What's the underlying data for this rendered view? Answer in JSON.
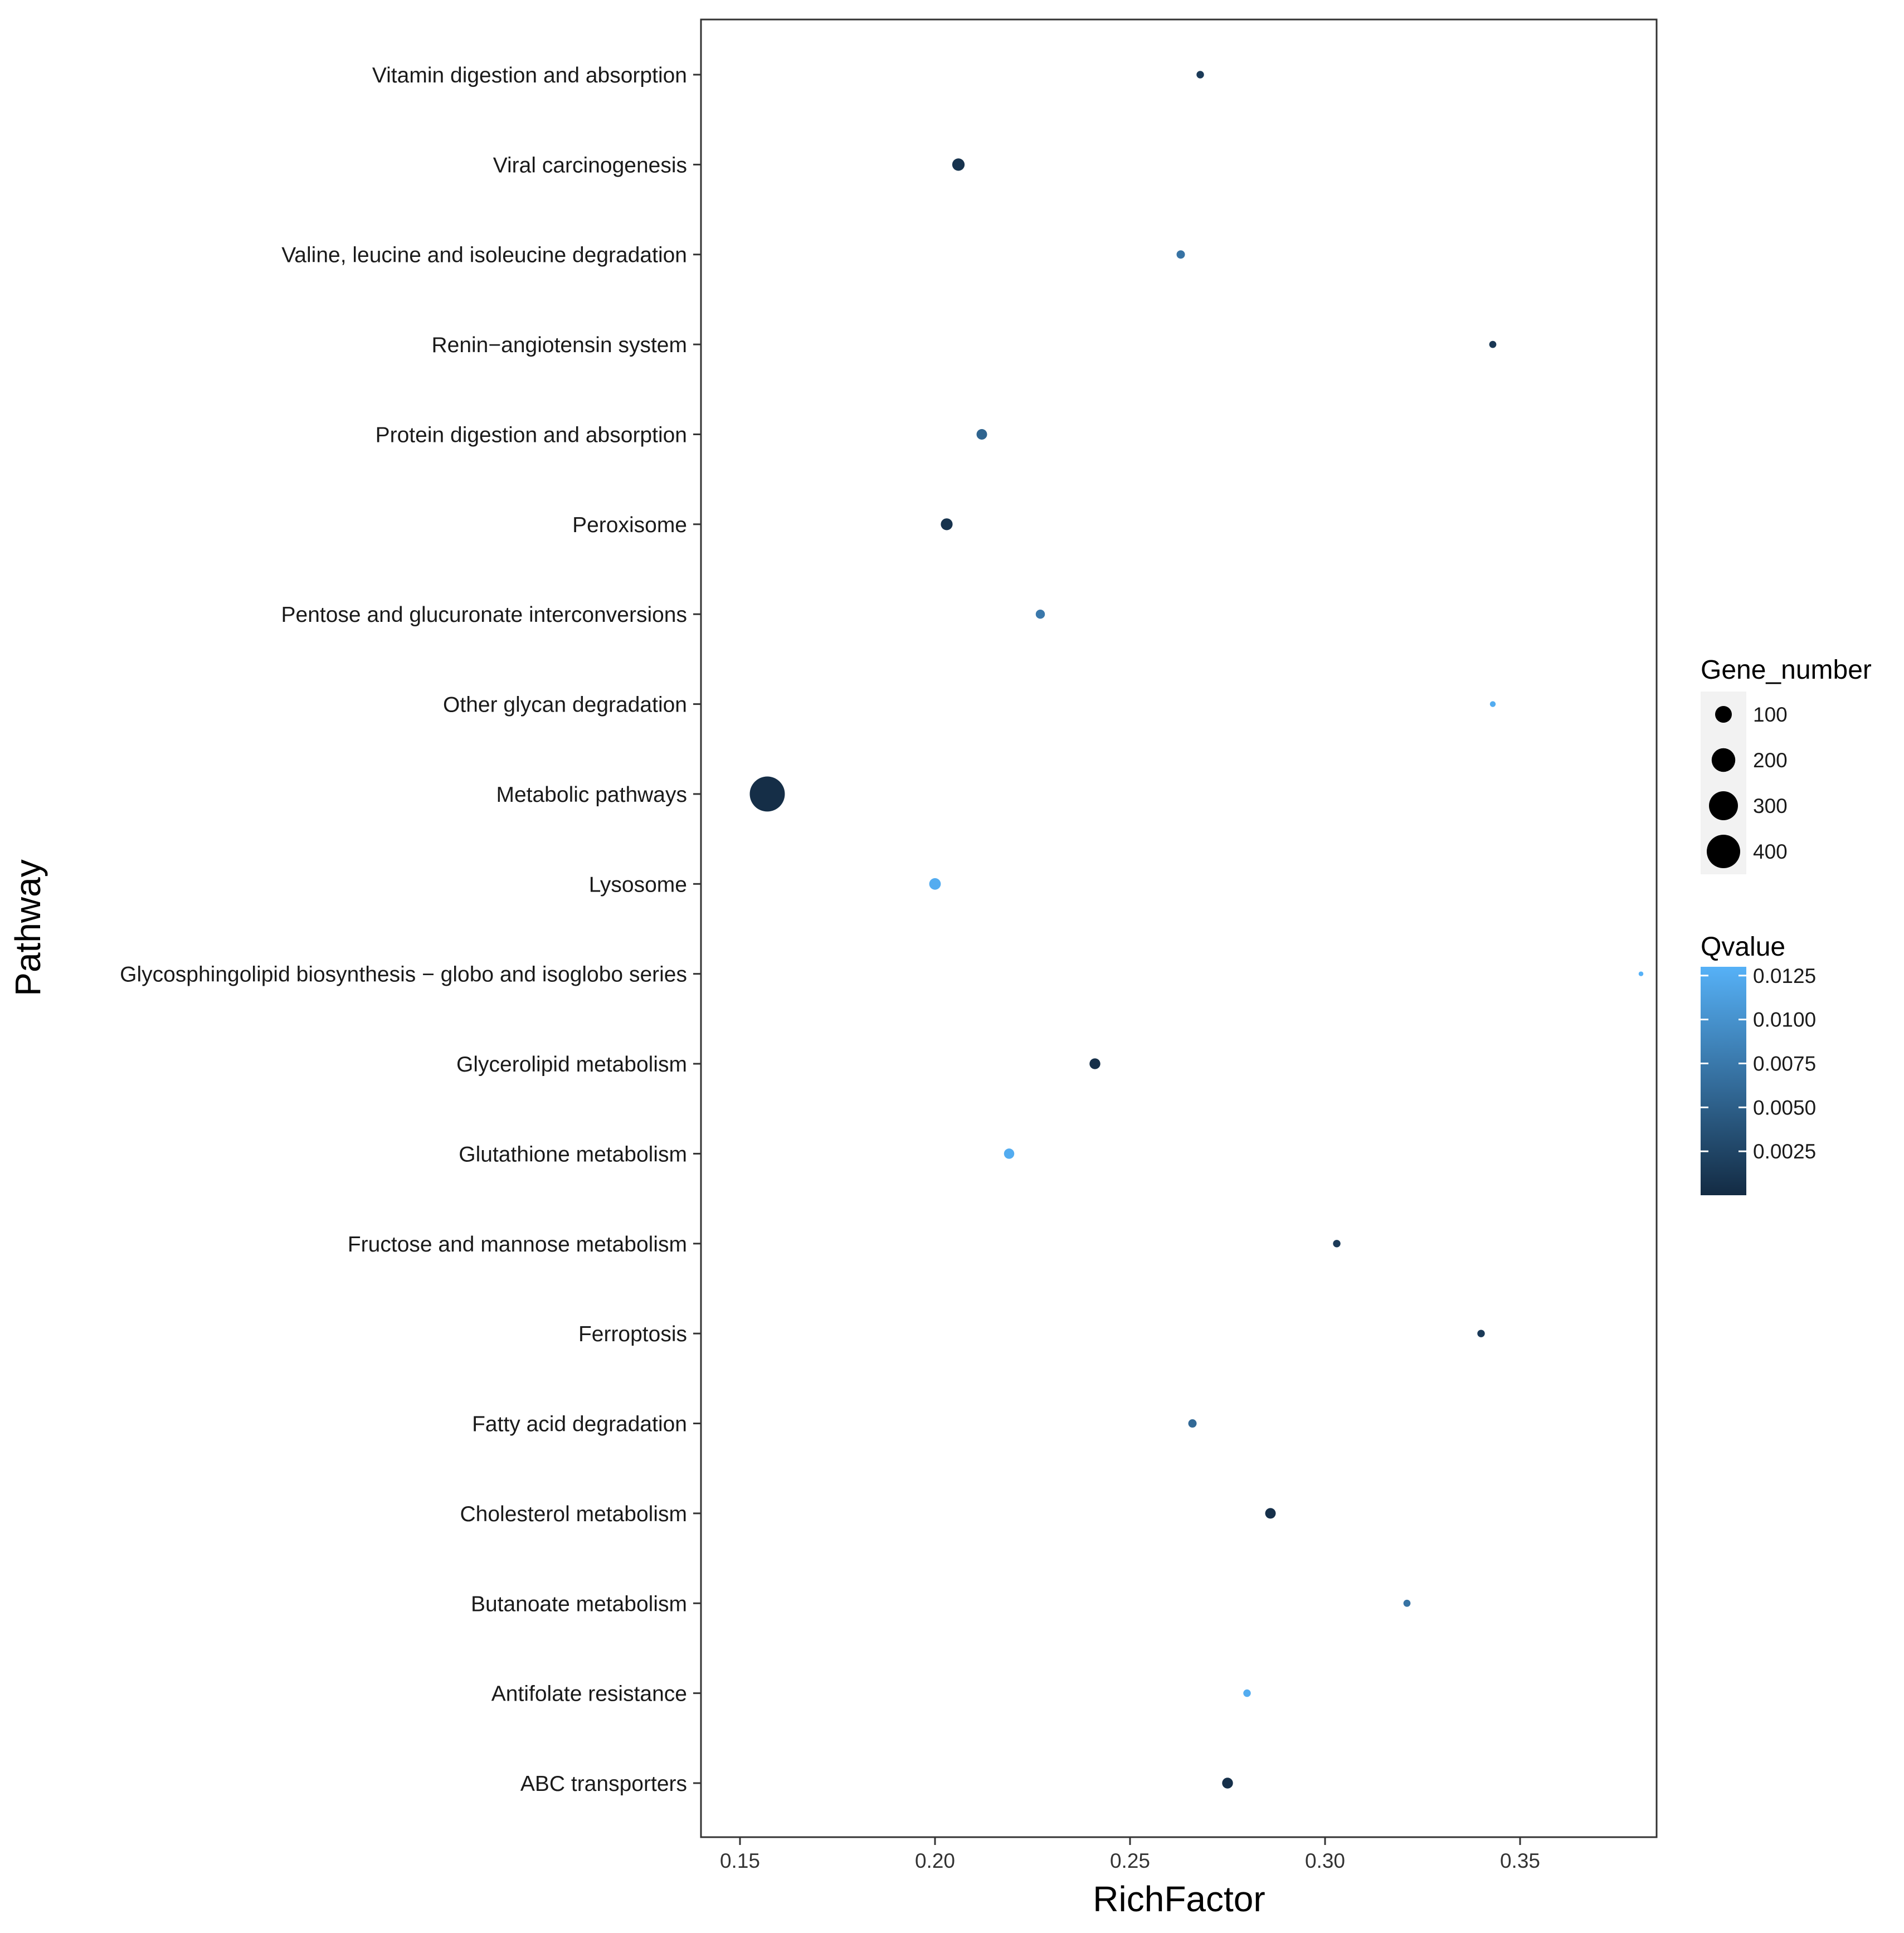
{
  "chart_data": {
    "type": "scatter",
    "title": "",
    "xlabel": "RichFactor",
    "ylabel": "Pathway",
    "xlim": [
      0.14,
      0.385
    ],
    "x_ticks": [
      "0.15",
      "0.20",
      "0.25",
      "0.30",
      "0.35"
    ],
    "grid": false,
    "points": [
      {
        "pathway": "Vitamin digestion and absorption",
        "richfactor": 0.268,
        "gene_number": 20,
        "qvalue": 0.0015
      },
      {
        "pathway": "Viral carcinogenesis",
        "richfactor": 0.206,
        "gene_number": 55,
        "qvalue": 0.0008
      },
      {
        "pathway": "Valine, leucine and isoleucine degradation",
        "richfactor": 0.263,
        "gene_number": 25,
        "qvalue": 0.007
      },
      {
        "pathway": "Renin−angiotensin system",
        "richfactor": 0.343,
        "gene_number": 18,
        "qvalue": 0.0012
      },
      {
        "pathway": "Protein digestion and absorption",
        "richfactor": 0.212,
        "gene_number": 40,
        "qvalue": 0.0055
      },
      {
        "pathway": "Peroxisome",
        "richfactor": 0.203,
        "gene_number": 50,
        "qvalue": 0.0008
      },
      {
        "pathway": "Pentose and glucuronate interconversions",
        "richfactor": 0.227,
        "gene_number": 30,
        "qvalue": 0.0075
      },
      {
        "pathway": "Other glycan degradation",
        "richfactor": 0.343,
        "gene_number": 12,
        "qvalue": 0.0125
      },
      {
        "pathway": "Metabolic pathways",
        "richfactor": 0.157,
        "gene_number": 440,
        "qvalue": 0.0003
      },
      {
        "pathway": "Lysosome",
        "richfactor": 0.2,
        "gene_number": 48,
        "qvalue": 0.0125
      },
      {
        "pathway": "Glycosphingolipid biosynthesis − globo and isoglobo series",
        "richfactor": 0.381,
        "gene_number": 8,
        "qvalue": 0.013
      },
      {
        "pathway": "Glycerolipid metabolism",
        "richfactor": 0.241,
        "gene_number": 42,
        "qvalue": 0.0005
      },
      {
        "pathway": "Glutathione metabolism",
        "richfactor": 0.219,
        "gene_number": 38,
        "qvalue": 0.0125
      },
      {
        "pathway": "Fructose and mannose metabolism",
        "richfactor": 0.303,
        "gene_number": 20,
        "qvalue": 0.0015
      },
      {
        "pathway": "Ferroptosis",
        "richfactor": 0.34,
        "gene_number": 20,
        "qvalue": 0.0015
      },
      {
        "pathway": "Fatty acid degradation",
        "richfactor": 0.266,
        "gene_number": 25,
        "qvalue": 0.006
      },
      {
        "pathway": "Cholesterol metabolism",
        "richfactor": 0.286,
        "gene_number": 40,
        "qvalue": 0.0005
      },
      {
        "pathway": "Butanoate metabolism",
        "richfactor": 0.321,
        "gene_number": 18,
        "qvalue": 0.007
      },
      {
        "pathway": "Antifolate resistance",
        "richfactor": 0.28,
        "gene_number": 20,
        "qvalue": 0.0125
      },
      {
        "pathway": "ABC transporters",
        "richfactor": 0.275,
        "gene_number": 42,
        "qvalue": 0.0005
      }
    ],
    "size_legend": {
      "title": "Gene_number",
      "values": [
        100,
        200,
        300,
        400
      ],
      "labels": [
        "100",
        "200",
        "300",
        "400"
      ]
    },
    "color_legend": {
      "title": "Qvalue",
      "range": [
        0,
        0.013
      ],
      "ticks": [
        0.0125,
        0.01,
        0.0075,
        0.005,
        0.0025
      ],
      "labels": [
        "0.0125",
        "0.0100",
        "0.0075",
        "0.0050",
        "0.0025"
      ],
      "low_color": "#132b43",
      "high_color": "#56b1f7"
    }
  }
}
